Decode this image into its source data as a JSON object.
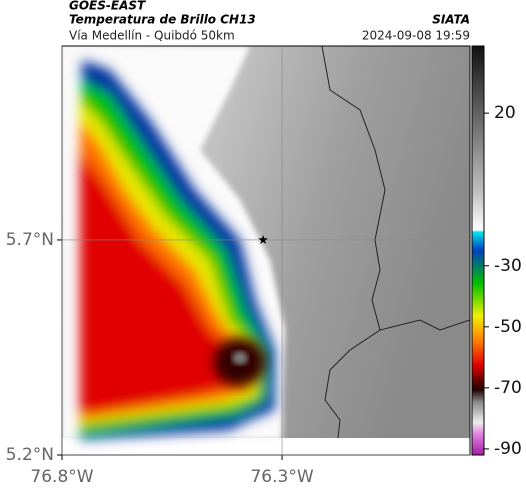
{
  "header": {
    "satellite": "GOES-EAST",
    "product": "Temperatura de Brillo CH13",
    "source": "SIATA",
    "location": "Vía Medellín - Quibdó 50km",
    "datetime": "2024-09-08 19:59"
  },
  "map": {
    "xlim": [
      -76.8,
      -75.873
    ],
    "ylim": [
      5.2,
      6.151
    ],
    "xticks": [
      {
        "value": -76.8,
        "label": "76.8°W"
      },
      {
        "value": -76.3,
        "label": "76.3°W"
      }
    ],
    "yticks": [
      {
        "value": 5.7,
        "label": "5.7°N"
      },
      {
        "value": 5.2,
        "label": "5.2°N"
      }
    ],
    "grid": true,
    "marker": {
      "lon": -76.343,
      "lat": 5.7
    }
  },
  "colorbar": {
    "lim": [
      -92,
      42
    ],
    "ticks": [
      20,
      -30,
      -50,
      -70,
      -90
    ]
  }
}
